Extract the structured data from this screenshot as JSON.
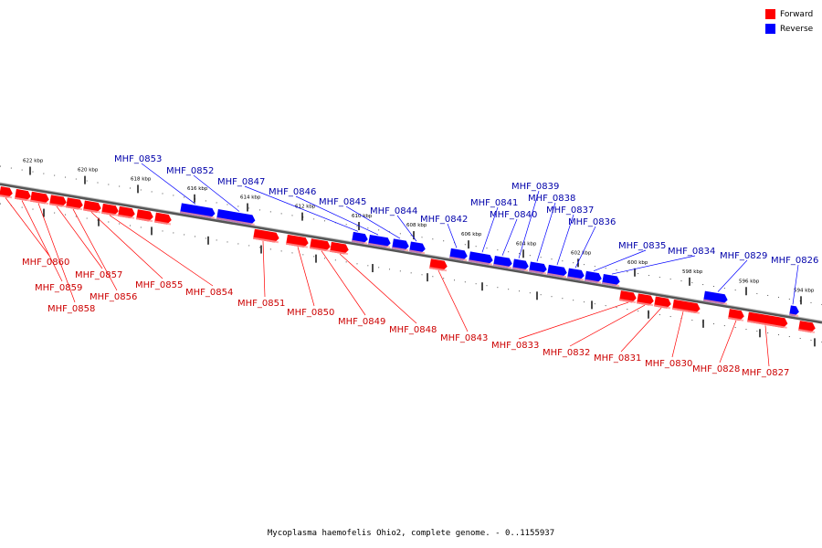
{
  "legend": {
    "forward": {
      "label": "Forward",
      "color": "#ff0000"
    },
    "reverse": {
      "label": "Reverse",
      "color": "#0000ff"
    }
  },
  "caption": "Mycoplasma haemofelis Ohio2, complete genome. - 0..1155937",
  "axis": {
    "unit": "kbp",
    "ticks": [
      "622 kbp",
      "620 kbp",
      "618 kbp",
      "616 kbp",
      "614 kbp",
      "612 kbp",
      "610 kbp",
      "608 kbp",
      "606 kbp",
      "604 kbp",
      "602 kbp",
      "600 kbp",
      "598 kbp",
      "596 kbp",
      "594 kbp"
    ]
  },
  "genes": {
    "reverse": [
      "MHF_0853",
      "MHF_0852",
      "MHF_0847",
      "MHF_0846",
      "MHF_0845",
      "MHF_0844",
      "MHF_0842",
      "MHF_0841",
      "MHF_0840",
      "MHF_0839",
      "MHF_0838",
      "MHF_0837",
      "MHF_0836",
      "MHF_0835",
      "MHF_0834",
      "MHF_0829",
      "MHF_0826"
    ],
    "forward": [
      "MHF_0860",
      "MHF_0859",
      "MHF_0858",
      "MHF_0857",
      "MHF_0856",
      "MHF_0855",
      "MHF_0854",
      "MHF_0851",
      "MHF_0850",
      "MHF_0849",
      "MHF_0848",
      "MHF_0843",
      "MHF_0833",
      "MHF_0832",
      "MHF_0831",
      "MHF_0830",
      "MHF_0828",
      "MHF_0827"
    ]
  }
}
